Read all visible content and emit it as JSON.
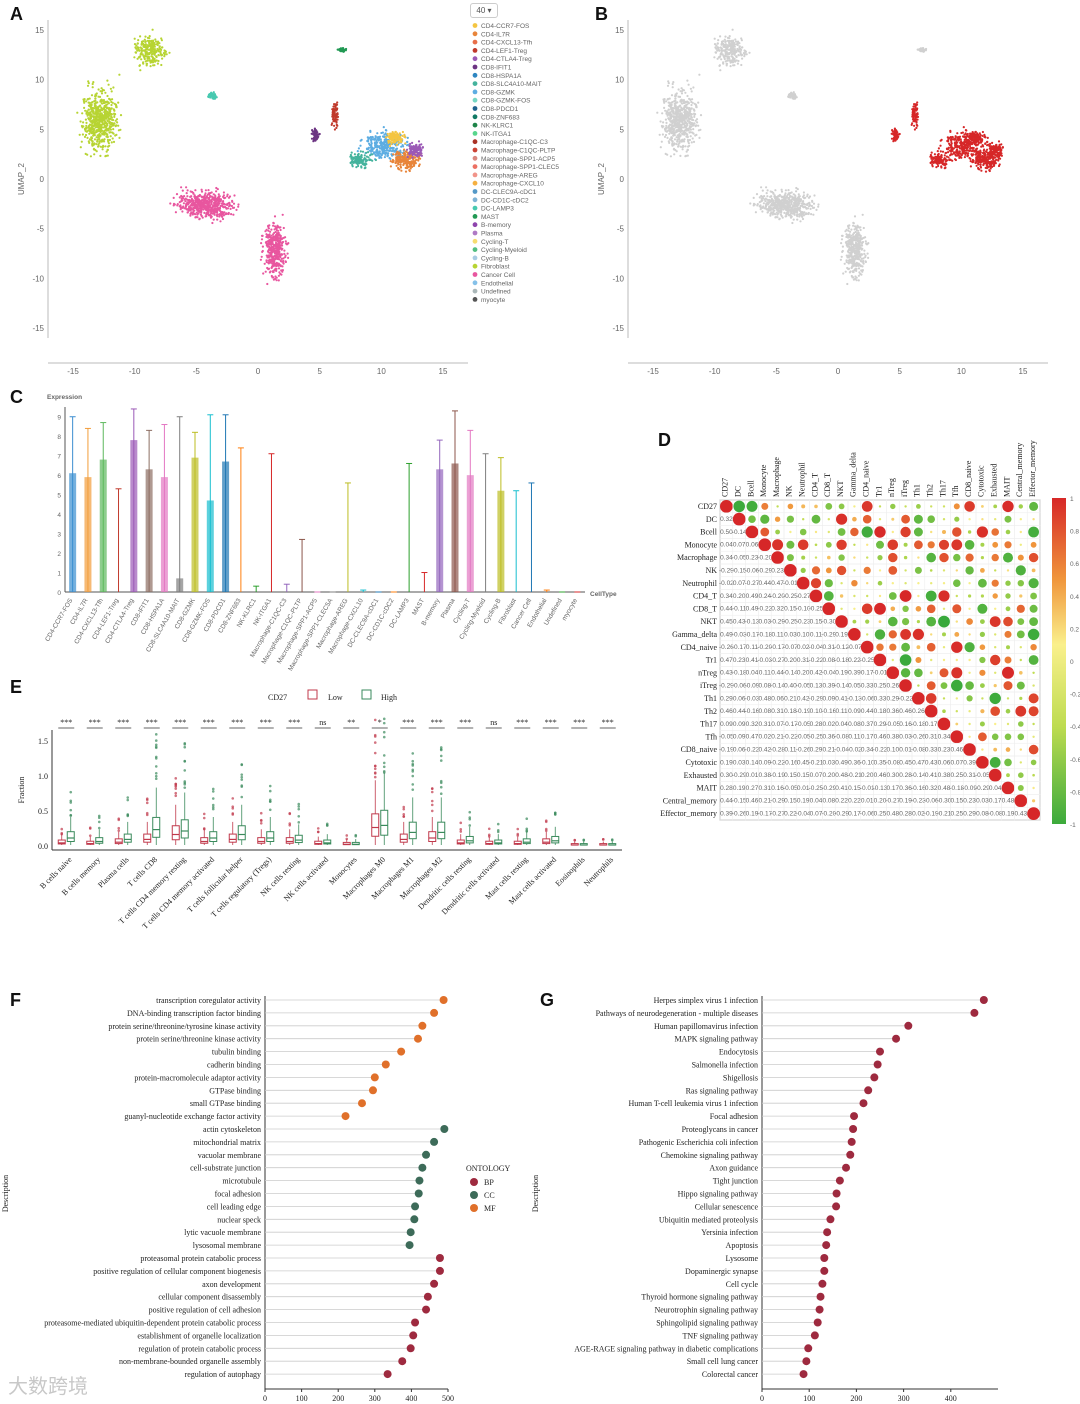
{
  "labels": {
    "A": "A",
    "B": "B",
    "C": "C",
    "D": "D",
    "E": "E",
    "F": "F",
    "G": "G"
  },
  "umap": {
    "ylabel": "UMAP_2",
    "yticks": [
      "15",
      "10",
      "5",
      "0",
      "-5",
      "-10",
      "-15"
    ],
    "xticks": [
      "-15",
      "-10",
      "-5",
      "0",
      "5",
      "10",
      "15"
    ],
    "dropdown": "40",
    "legend": [
      {
        "name": "CD4-CCR7-FOS",
        "color": "#f4c542"
      },
      {
        "name": "CD4-IL7R",
        "color": "#e8853a"
      },
      {
        "name": "CD4-CXCL13-Tfh",
        "color": "#e86f4a"
      },
      {
        "name": "CD4-LEF1-Treg",
        "color": "#c0392b"
      },
      {
        "name": "CD4-CTLA4-Treg",
        "color": "#9b59b6"
      },
      {
        "name": "CD8-IFIT1",
        "color": "#6c3483"
      },
      {
        "name": "CD8-HSPA1A",
        "color": "#2e86c1"
      },
      {
        "name": "CD8-SLC4A10-MAIT",
        "color": "#45b39d"
      },
      {
        "name": "CD8-GZMK",
        "color": "#5dade2"
      },
      {
        "name": "CD8-GZMK-FOS",
        "color": "#76d7c4"
      },
      {
        "name": "CD8-PDCD1",
        "color": "#1f618d"
      },
      {
        "name": "CD8-ZNF683",
        "color": "#117a65"
      },
      {
        "name": "NK-KLRC1",
        "color": "#1e8449"
      },
      {
        "name": "NK-ITGA1",
        "color": "#58d68d"
      },
      {
        "name": "Macrophage-C1QC-C3",
        "color": "#a93226"
      },
      {
        "name": "Macrophage-C1QC-PLTP",
        "color": "#cb4335"
      },
      {
        "name": "Macrophage-SPP1-ACP5",
        "color": "#d98880"
      },
      {
        "name": "Macrophage-SPP1-CLEC5",
        "color": "#ec7063"
      },
      {
        "name": "Macrophage-AREG",
        "color": "#f1948a"
      },
      {
        "name": "Macrophage-CXCL10",
        "color": "#f5b041"
      },
      {
        "name": "DC-CLEC9A-cDC1",
        "color": "#5499c7"
      },
      {
        "name": "DC-CD1C-cDC2",
        "color": "#7fb3d5"
      },
      {
        "name": "DC-LAMP3",
        "color": "#48c9b0"
      },
      {
        "name": "MAST",
        "color": "#229954"
      },
      {
        "name": "B-memory",
        "color": "#8e44ad"
      },
      {
        "name": "Plasma",
        "color": "#af7ac5"
      },
      {
        "name": "Cycling-T",
        "color": "#f7dc6f"
      },
      {
        "name": "Cycling-Myeloid",
        "color": "#52be80"
      },
      {
        "name": "Cycling-B",
        "color": "#a9cce3"
      },
      {
        "name": "Fibroblast",
        "color": "#b7d433"
      },
      {
        "name": "Cancer Cell",
        "color": "#e8569f"
      },
      {
        "name": "Endothelial",
        "color": "#85c1e9"
      },
      {
        "name": "Undefined",
        "color": "#aab7b8"
      },
      {
        "name": "myocyte",
        "color": "#555555"
      }
    ]
  },
  "violin": {
    "ylabel": "Expression",
    "xlabel": "CellType",
    "yticks": [
      "9",
      "8",
      "7",
      "6",
      "5",
      "4",
      "3",
      "2",
      "1",
      "0"
    ],
    "categories": [
      "CD4-CCR7-FOS",
      "CD4-IL7R",
      "CD4-CXCL13-Tfh",
      "CD4-LEF1-Treg",
      "CD4-CTLA4-Treg",
      "CD8-IFIT1",
      "CD8-HSPA1A",
      "CD8-SLC4A10-MAIT",
      "CD8-GZMK",
      "CD8-GZMK-FOS",
      "CD8-PDCD1",
      "CD8-ZNF683",
      "NK-KLRC1",
      "NK-ITGA1",
      "Macrophage-C1QC-C3",
      "Macrophage-C1QC-PLTP",
      "Macrophage-SPP1-ACP5",
      "Macrophage-SPP1-CLEC5A",
      "Macrophage-AREG",
      "Macrophage-CXCL10",
      "DC-CLEC9A-cDC1",
      "DC-CD1C-cDC2",
      "DC-LAMP3",
      "MAST",
      "B-memory",
      "Plasma",
      "Cycling-T",
      "Cycling-Myeloid",
      "Cycling-B",
      "Fibroblast",
      "Cancer Cell",
      "Endothelial",
      "Undefined",
      "myocyte"
    ],
    "max": [
      9.0,
      8.4,
      8.7,
      5.3,
      9.4,
      8.3,
      8.6,
      9.0,
      8.2,
      9.1,
      9.1,
      7.4,
      0.3,
      7.1,
      0.4,
      2.7,
      0.0,
      0.0,
      5.6,
      0.1,
      0.0,
      0.0,
      6.6,
      1.0,
      7.8,
      9.3,
      8.3,
      7.1,
      6.9,
      5.2,
      5.6,
      0.1,
      0.0,
      0.0
    ],
    "q3": [
      6.1,
      5.9,
      6.8,
      0,
      7.8,
      6.3,
      5.9,
      0.7,
      6.9,
      4.7,
      6.7,
      0,
      0,
      0,
      0,
      0,
      0,
      0,
      0,
      0,
      0,
      0,
      0,
      0,
      6.3,
      6.6,
      6.0,
      0,
      5.2,
      0,
      0,
      0,
      0,
      0
    ],
    "colors": [
      "#3b8ed0",
      "#f29c3a",
      "#5cb85c",
      "#c0392b",
      "#9b59b6",
      "#8d6e63",
      "#e377c2",
      "#7f7f7f",
      "#bcbd22",
      "#17becf",
      "#1f77b4",
      "#ff7f0e",
      "#2ca02c",
      "#d62728",
      "#9467bd",
      "#8c564b",
      "#e377c2",
      "#7f7f7f",
      "#bcbd22",
      "#17becf",
      "#1f77b4",
      "#ff7f0e",
      "#2ca02c",
      "#d62728",
      "#9467bd",
      "#8c564b",
      "#e377c2",
      "#7f7f7f",
      "#bcbd22",
      "#17becf",
      "#1f77b4",
      "#ff7f0e",
      "#2ca02c",
      "#d62728"
    ]
  },
  "corr": {
    "names": [
      "CD27",
      "DC",
      "Bcell",
      "Monocyte",
      "Macrophage",
      "NK",
      "Neutrophil",
      "CD4_T",
      "CD8_T",
      "NKT",
      "Gamma_delta",
      "CD4_naive",
      "Tr1",
      "nTreg",
      "iTreg",
      "Th1",
      "Th2",
      "Th17",
      "Tfh",
      "CD8_naive",
      "Cytotoxic",
      "Exhausted",
      "MAIT",
      "Central_memory",
      "Effector_memory"
    ],
    "scale": [
      "1",
      "0.8",
      "0.6",
      "0.4",
      "0.2",
      "0",
      "-0.2",
      "-0.4",
      "-0.6",
      "-0.8",
      "-1"
    ]
  },
  "boxplot": {
    "title": "CD27",
    "legend_low": "Low",
    "legend_high": "High",
    "ylabel": "Fraction",
    "yticks": [
      "1.5",
      "1.0",
      "0.5",
      "0.0"
    ],
    "categories": [
      "B cells naive",
      "B cells memory",
      "Plasma cells",
      "T cells CD8",
      "T cells CD4 memory resting",
      "T cells CD4 memory activated",
      "T cells follicular helper",
      "T cells regulatory (Tregs)",
      "NK cells resting",
      "NK cells activated",
      "Monocytes",
      "Macrophages M0",
      "Macrophages M1",
      "Macrophages M2",
      "Dendritic cells resting",
      "Dendritic cells activated",
      "Mast cells resting",
      "Mast cells activated",
      "Eosinophils",
      "Neutrophils"
    ],
    "signif": [
      "***",
      "***",
      "***",
      "***",
      "***",
      "***",
      "***",
      "***",
      "***",
      "ns",
      "**",
      "*",
      "***",
      "***",
      "***",
      "ns",
      "***",
      "***",
      "***",
      "***"
    ],
    "low_median": [
      0.03,
      0.02,
      0.04,
      0.08,
      0.15,
      0.05,
      0.08,
      0.05,
      0.05,
      0.02,
      0.01,
      0.25,
      0.08,
      0.1,
      0.03,
      0.02,
      0.02,
      0.04,
      0.0,
      0.0
    ],
    "high_median": [
      0.1,
      0.05,
      0.08,
      0.22,
      0.2,
      0.1,
      0.15,
      0.1,
      0.07,
      0.03,
      0.01,
      0.28,
      0.18,
      0.18,
      0.06,
      0.03,
      0.04,
      0.06,
      0.0,
      0.0
    ],
    "colors": {
      "low": "#c0394b",
      "high": "#3a8a5c"
    }
  },
  "go": {
    "ylabel": "Description",
    "xlabel": "Count",
    "xticks": [
      "0",
      "100",
      "200",
      "300",
      "400",
      "500"
    ],
    "legend_title": "ONTOLOGY",
    "legend": [
      {
        "name": "BP",
        "color": "#9e2a3f"
      },
      {
        "name": "CC",
        "color": "#3d6b59"
      },
      {
        "name": "MF",
        "color": "#e0702a"
      }
    ],
    "terms": [
      {
        "name": "transcription coregulator activity",
        "count": 488,
        "ont": "MF"
      },
      {
        "name": "DNA-binding transcription factor binding",
        "count": 462,
        "ont": "MF"
      },
      {
        "name": "protein serine/threonine/tyrosine kinase activity",
        "count": 430,
        "ont": "MF"
      },
      {
        "name": "protein serine/threonine kinase activity",
        "count": 418,
        "ont": "MF"
      },
      {
        "name": "tubulin binding",
        "count": 372,
        "ont": "MF"
      },
      {
        "name": "cadherin binding",
        "count": 330,
        "ont": "MF"
      },
      {
        "name": "protein-macromolecule adaptor activity",
        "count": 300,
        "ont": "MF"
      },
      {
        "name": "GTPase binding",
        "count": 295,
        "ont": "MF"
      },
      {
        "name": "small GTPase binding",
        "count": 265,
        "ont": "MF"
      },
      {
        "name": "guanyl-nucleotide exchange factor activity",
        "count": 220,
        "ont": "MF"
      },
      {
        "name": "actin cytoskeleton",
        "count": 490,
        "ont": "CC"
      },
      {
        "name": "mitochondrial matrix",
        "count": 462,
        "ont": "CC"
      },
      {
        "name": "vacuolar membrane",
        "count": 440,
        "ont": "CC"
      },
      {
        "name": "cell-substrate junction",
        "count": 430,
        "ont": "CC"
      },
      {
        "name": "microtubule",
        "count": 422,
        "ont": "CC"
      },
      {
        "name": "focal adhesion",
        "count": 420,
        "ont": "CC"
      },
      {
        "name": "cell leading edge",
        "count": 410,
        "ont": "CC"
      },
      {
        "name": "nuclear speck",
        "count": 408,
        "ont": "CC"
      },
      {
        "name": "lytic vacuole membrane",
        "count": 398,
        "ont": "CC"
      },
      {
        "name": "lysosomal membrane",
        "count": 395,
        "ont": "CC"
      },
      {
        "name": "proteasomal protein catabolic process",
        "count": 478,
        "ont": "BP"
      },
      {
        "name": "positive regulation of cellular component biogenesis",
        "count": 478,
        "ont": "BP"
      },
      {
        "name": "axon development",
        "count": 462,
        "ont": "BP"
      },
      {
        "name": "cellular component disassembly",
        "count": 445,
        "ont": "BP"
      },
      {
        "name": "positive regulation of cell adhesion",
        "count": 440,
        "ont": "BP"
      },
      {
        "name": "proteasome-mediated ubiquitin-dependent protein catabolic process",
        "count": 410,
        "ont": "BP"
      },
      {
        "name": "establishment of organelle localization",
        "count": 405,
        "ont": "BP"
      },
      {
        "name": "regulation of protein catabolic process",
        "count": 398,
        "ont": "BP"
      },
      {
        "name": "non-membrane-bounded organelle assembly",
        "count": 375,
        "ont": "BP"
      },
      {
        "name": "regulation of autophagy",
        "count": 335,
        "ont": "BP"
      }
    ]
  },
  "kegg": {
    "ylabel": "Description",
    "xlabel": "Count",
    "xticks": [
      "0",
      "100",
      "200",
      "300",
      "400"
    ],
    "color": "#9e2a3f",
    "terms": [
      {
        "name": "Herpes simplex virus 1 infection",
        "count": 470
      },
      {
        "name": "Pathways of neurodegeneration - multiple diseases",
        "count": 450
      },
      {
        "name": "Human papillomavirus infection",
        "count": 310
      },
      {
        "name": "MAPK signaling pathway",
        "count": 284
      },
      {
        "name": "Endocytosis",
        "count": 250
      },
      {
        "name": "Salmonella infection",
        "count": 245
      },
      {
        "name": "Shigellosis",
        "count": 238
      },
      {
        "name": "Ras signaling pathway",
        "count": 225
      },
      {
        "name": "Human T-cell leukemia virus 1 infection",
        "count": 215
      },
      {
        "name": "Focal adhesion",
        "count": 195
      },
      {
        "name": "Proteoglycans in cancer",
        "count": 193
      },
      {
        "name": "Pathogenic Escherichia coli infection",
        "count": 190
      },
      {
        "name": "Chemokine signaling pathway",
        "count": 187
      },
      {
        "name": "Axon guidance",
        "count": 178
      },
      {
        "name": "Tight junction",
        "count": 165
      },
      {
        "name": "Hippo signaling pathway",
        "count": 158
      },
      {
        "name": "Cellular senescence",
        "count": 157
      },
      {
        "name": "Ubiquitin mediated proteolysis",
        "count": 145
      },
      {
        "name": "Yersinia infection",
        "count": 138
      },
      {
        "name": "Apoptosis",
        "count": 136
      },
      {
        "name": "Lysosome",
        "count": 132
      },
      {
        "name": "Dopaminergic synapse",
        "count": 132
      },
      {
        "name": "Cell cycle",
        "count": 128
      },
      {
        "name": "Thyroid hormone signaling pathway",
        "count": 124
      },
      {
        "name": "Neurotrophin signaling pathway",
        "count": 122
      },
      {
        "name": "Sphingolipid signaling pathway",
        "count": 118
      },
      {
        "name": "TNF signaling pathway",
        "count": 112
      },
      {
        "name": "AGE-RAGE signaling pathway in diabetic complications",
        "count": 98
      },
      {
        "name": "Small cell lung cancer",
        "count": 94
      },
      {
        "name": "Colorectal cancer",
        "count": 88
      }
    ]
  },
  "watermark": "大数跨境"
}
